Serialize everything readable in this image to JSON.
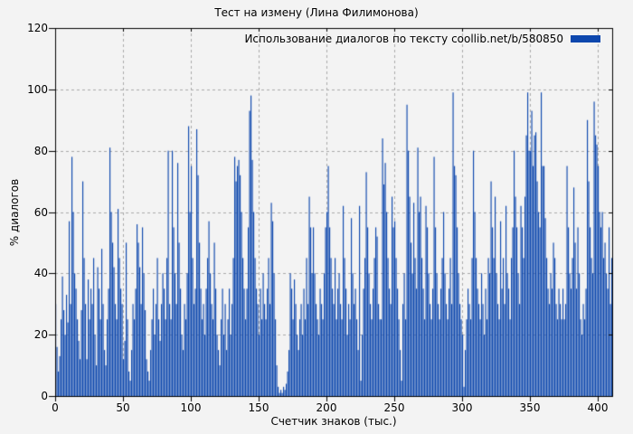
{
  "page": {
    "background": "#f3f3f3",
    "text_color": "#000000"
  },
  "chart_data": {
    "type": "bar",
    "title": "Тест на измену (Лина Филимонова)",
    "legend": {
      "label": "Использование диалогов по тексту coollib.net/b/580850",
      "swatch_color": "#0d47ad",
      "position": "top-right-inside"
    },
    "xlabel": "Счетчик знаков (тыс.)",
    "ylabel": "% диалогов",
    "xlim": [
      0,
      411
    ],
    "ylim": [
      0,
      120
    ],
    "x_ticks": [
      0,
      50,
      100,
      150,
      200,
      250,
      300,
      350,
      400
    ],
    "y_ticks": [
      0,
      20,
      40,
      60,
      80,
      100,
      120
    ],
    "grid": true,
    "grid_style": "dashed",
    "grid_color": "#a8a8a8",
    "frame_color": "#000000",
    "bar_color": "#0d47ad",
    "x_start": 0,
    "x_step": 1,
    "values": [
      30,
      16,
      8,
      13,
      25,
      39,
      28,
      20,
      33,
      24,
      57,
      30,
      78,
      60,
      40,
      35,
      25,
      18,
      12,
      28,
      70,
      45,
      30,
      12,
      38,
      25,
      35,
      30,
      45,
      20,
      10,
      42,
      35,
      25,
      48,
      30,
      15,
      10,
      25,
      35,
      81,
      60,
      50,
      42,
      30,
      25,
      61,
      45,
      35,
      30,
      12,
      18,
      50,
      25,
      8,
      5,
      15,
      30,
      25,
      35,
      56,
      50,
      42,
      30,
      55,
      40,
      28,
      12,
      8,
      5,
      15,
      25,
      35,
      20,
      30,
      45,
      25,
      18,
      30,
      40,
      35,
      25,
      45,
      80,
      30,
      25,
      80,
      55,
      40,
      30,
      76,
      50,
      35,
      20,
      15,
      30,
      25,
      40,
      88,
      60,
      75,
      45,
      30,
      35,
      87,
      72,
      50,
      35,
      25,
      30,
      20,
      35,
      45,
      57,
      40,
      30,
      25,
      50,
      35,
      20,
      15,
      10,
      25,
      35,
      20,
      30,
      15,
      25,
      35,
      20,
      30,
      45,
      78,
      70,
      75,
      77,
      72,
      60,
      45,
      35,
      25,
      35,
      55,
      93,
      98,
      77,
      60,
      45,
      35,
      30,
      20,
      35,
      25,
      40,
      30,
      25,
      35,
      45,
      30,
      63,
      57,
      40,
      25,
      10,
      3,
      1,
      2,
      1,
      3,
      2,
      4,
      8,
      15,
      40,
      35,
      25,
      38,
      30,
      20,
      15,
      25,
      30,
      20,
      35,
      25,
      45,
      30,
      65,
      55,
      40,
      55,
      40,
      30,
      25,
      20,
      35,
      30,
      25,
      40,
      55,
      60,
      75,
      55,
      45,
      35,
      30,
      45,
      25,
      35,
      40,
      30,
      25,
      62,
      45,
      35,
      20,
      30,
      25,
      58,
      40,
      30,
      35,
      25,
      15,
      62,
      5,
      20,
      35,
      45,
      73,
      55,
      40,
      30,
      25,
      35,
      45,
      55,
      52,
      30,
      25,
      25,
      84,
      69,
      76,
      60,
      45,
      35,
      30,
      65,
      55,
      57,
      45,
      35,
      25,
      15,
      5,
      30,
      40,
      25,
      95,
      80,
      65,
      50,
      40,
      63,
      45,
      35,
      81,
      60,
      65,
      45,
      35,
      25,
      62,
      55,
      40,
      30,
      25,
      35,
      78,
      55,
      40,
      30,
      25,
      35,
      45,
      60,
      40,
      30,
      25,
      35,
      45,
      30,
      99,
      75,
      72,
      55,
      40,
      30,
      25,
      20,
      3,
      15,
      25,
      35,
      30,
      25,
      45,
      80,
      60,
      45,
      35,
      30,
      25,
      40,
      30,
      20,
      35,
      25,
      45,
      40,
      70,
      55,
      45,
      65,
      40,
      30,
      25,
      57,
      35,
      45,
      30,
      62,
      40,
      35,
      25,
      45,
      55,
      80,
      65,
      55,
      40,
      30,
      62,
      55,
      45,
      65,
      85,
      99,
      80,
      80,
      93,
      75,
      85,
      86,
      70,
      60,
      55,
      99,
      75,
      75,
      58,
      45,
      35,
      30,
      40,
      35,
      50,
      45,
      30,
      25,
      35,
      30,
      25,
      35,
      25,
      30,
      75,
      55,
      40,
      35,
      45,
      68,
      50,
      35,
      55,
      40,
      25,
      20,
      30,
      25,
      35,
      90,
      70,
      55,
      45,
      40,
      96,
      85,
      82,
      75,
      60,
      55,
      60,
      45,
      50,
      40,
      35,
      55,
      30,
      45
    ]
  }
}
